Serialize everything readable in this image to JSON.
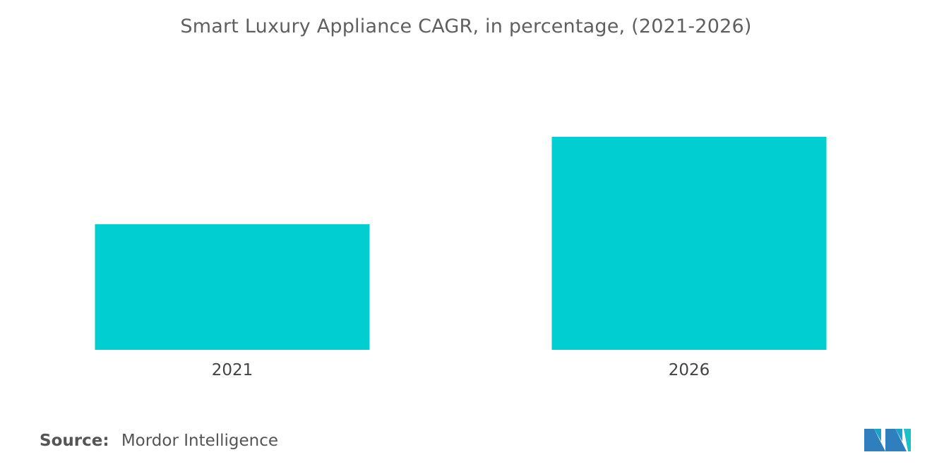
{
  "chart_data": {
    "type": "bar",
    "title": "Smart Luxury Appliance CAGR, in percentage, (2021-2026)",
    "categories": [
      "2021",
      "2026"
    ],
    "values": [
      59,
      100
    ],
    "xlabel": "",
    "ylabel": "",
    "ylim": [
      0,
      100
    ],
    "grid": false,
    "colors": {
      "bar": "#00CED1"
    }
  },
  "footer": {
    "source_label": "Source:",
    "source_value": "Mordor Intelligence"
  },
  "logo": {
    "icon": "mordor-intelligence-logo-icon"
  }
}
